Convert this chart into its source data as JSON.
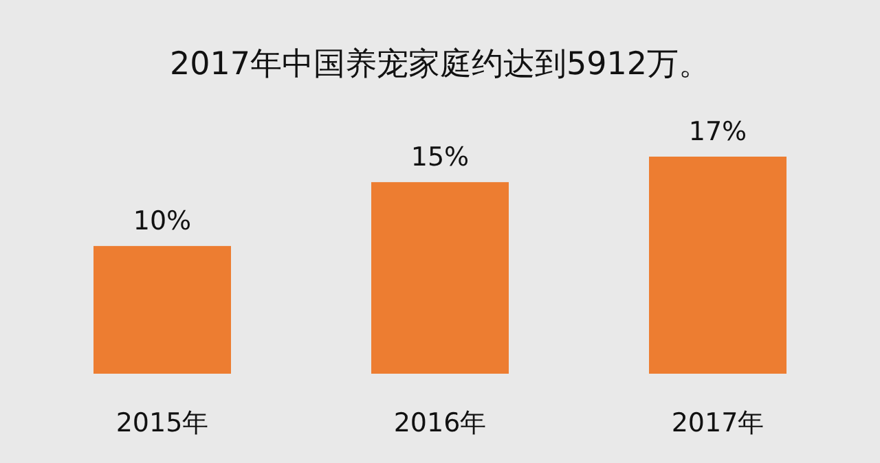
{
  "chart_data": {
    "type": "bar",
    "title": "2017年中国养宠家庭约达到5912万。",
    "categories": [
      "2015年",
      "2016年",
      "2017年"
    ],
    "values": [
      10,
      15,
      17
    ],
    "value_labels": [
      "10%",
      "15%",
      "17%"
    ],
    "color": "#ed7d31"
  }
}
